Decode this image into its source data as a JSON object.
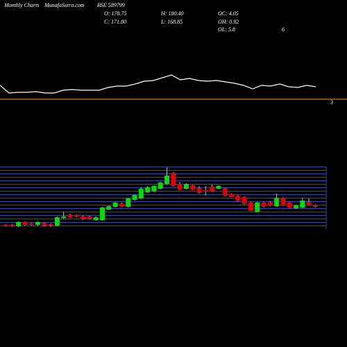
{
  "header": {
    "labels": [
      "Monthly Charts",
      "MunafaSutra.com",
      "BSE 589799"
    ],
    "stats": [
      "O: 178.75",
      "H: 180.40",
      "OC: 4.05",
      "C: 171.80",
      "L: 168.85",
      "OH: 0.92",
      "OL: 5.8",
      "6"
    ]
  },
  "chart_data": [
    {
      "type": "line",
      "color": "#ffffff",
      "ylim": [
        55,
        100
      ],
      "values": [
        77,
        66,
        67,
        67,
        68,
        66,
        66,
        70,
        71,
        70,
        70,
        70,
        74,
        76,
        76,
        79,
        83,
        84,
        88,
        92,
        85,
        87,
        84,
        83,
        84,
        82,
        80,
        77,
        72,
        77,
        76,
        79,
        75,
        74,
        77,
        75
      ],
      "reference": {
        "value": 57,
        "color": "#f07800"
      },
      "annotation": "3"
    },
    {
      "type": "candlestick",
      "up_color": "#00dd00",
      "down_color": "#e00000",
      "ylim": [
        120,
        255
      ],
      "open": [
        129,
        129,
        126,
        135,
        132,
        129,
        133.5,
        130.5,
        127.5,
        144,
        151.5,
        150,
        147,
        147,
        139.5,
        139.5,
        162,
        168,
        175.5,
        168,
        183,
        186,
        199.5,
        201,
        207,
        217.5,
        241.5,
        217.5,
        207,
        214.5,
        208.5,
        204,
        211.5,
        207,
        208.5,
        195,
        192,
        189,
        177,
        157.5,
        177,
        177,
        169.5,
        187.5,
        177,
        165,
        166.5,
        178.5,
        172.5
      ],
      "high": [
        130.5,
        130.5,
        136.5,
        136.5,
        133.5,
        136.5,
        135,
        132,
        147,
        157.5,
        153,
        151.5,
        148.5,
        148.5,
        147,
        168,
        171,
        178.5,
        177,
        187.5,
        195,
        210,
        213,
        214.5,
        222,
        253.5,
        243,
        222,
        219,
        216,
        213,
        213,
        216,
        214.5,
        210,
        196.5,
        193.5,
        190.5,
        178.5,
        178.5,
        178.5,
        180,
        196.5,
        189,
        178.5,
        172.5,
        187.5,
        186,
        174
      ],
      "low": [
        124.5,
        124.5,
        124.5,
        127.5,
        127.5,
        127.5,
        126,
        124.5,
        126,
        141,
        144,
        145.5,
        139.5,
        141,
        138,
        138,
        160.5,
        166.5,
        168,
        166.5,
        181.5,
        184.5,
        198,
        199.5,
        205.5,
        216,
        211.5,
        204,
        205.5,
        204,
        196.5,
        192,
        201,
        205.5,
        190.5,
        189,
        180,
        172.5,
        159,
        156,
        166.5,
        169.5,
        168,
        169.5,
        165,
        163.5,
        165,
        169.5,
        166.5
      ],
      "close": [
        126,
        126,
        135,
        129,
        129,
        135,
        127.5,
        127.5,
        145.5,
        147,
        145.5,
        147,
        141,
        142.5,
        145.5,
        166.5,
        169.5,
        177,
        169.5,
        186,
        193.5,
        207,
        210,
        213,
        220.5,
        235.5,
        213,
        205.5,
        217.5,
        205.5,
        198,
        201,
        202.5,
        213,
        192,
        189,
        181.5,
        174,
        159,
        177,
        168,
        171,
        187.5,
        171,
        166.5,
        171,
        181.5,
        171,
        168
      ]
    }
  ]
}
